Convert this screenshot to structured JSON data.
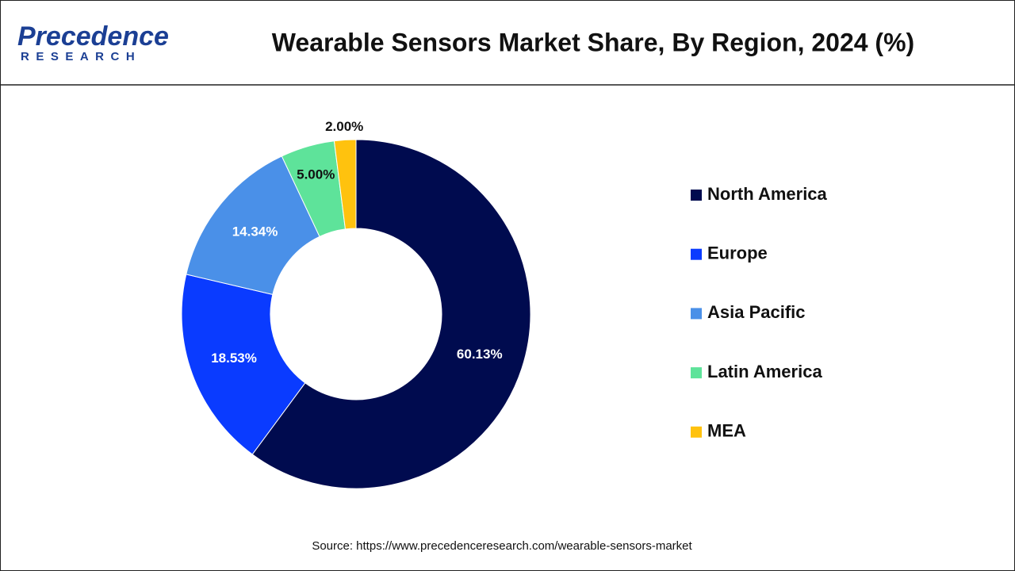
{
  "logo": {
    "name": "Precedence",
    "sub": "RESEARCH"
  },
  "chart_data": {
    "type": "donut",
    "title": "Wearable Sensors Market Share, By Region, 2024 (%)",
    "categories": [
      "North America",
      "Europe",
      "Asia Pacific",
      "Latin America",
      "MEA"
    ],
    "values": [
      60.13,
      18.53,
      14.34,
      5.0,
      2.0
    ],
    "value_labels": [
      "60.13%",
      "18.53%",
      "14.34%",
      "5.00%",
      "2.00%"
    ],
    "colors": [
      "#000b4f",
      "#0a3bff",
      "#4a90e8",
      "#5ee39a",
      "#ffc20e"
    ],
    "value_label_colors": [
      "#ffffff",
      "#ffffff",
      "#ffffff",
      "#111111",
      "#111111"
    ],
    "legend": "right",
    "source": "Source: https://www.precedenceresearch.com/wearable-sensors-market"
  }
}
